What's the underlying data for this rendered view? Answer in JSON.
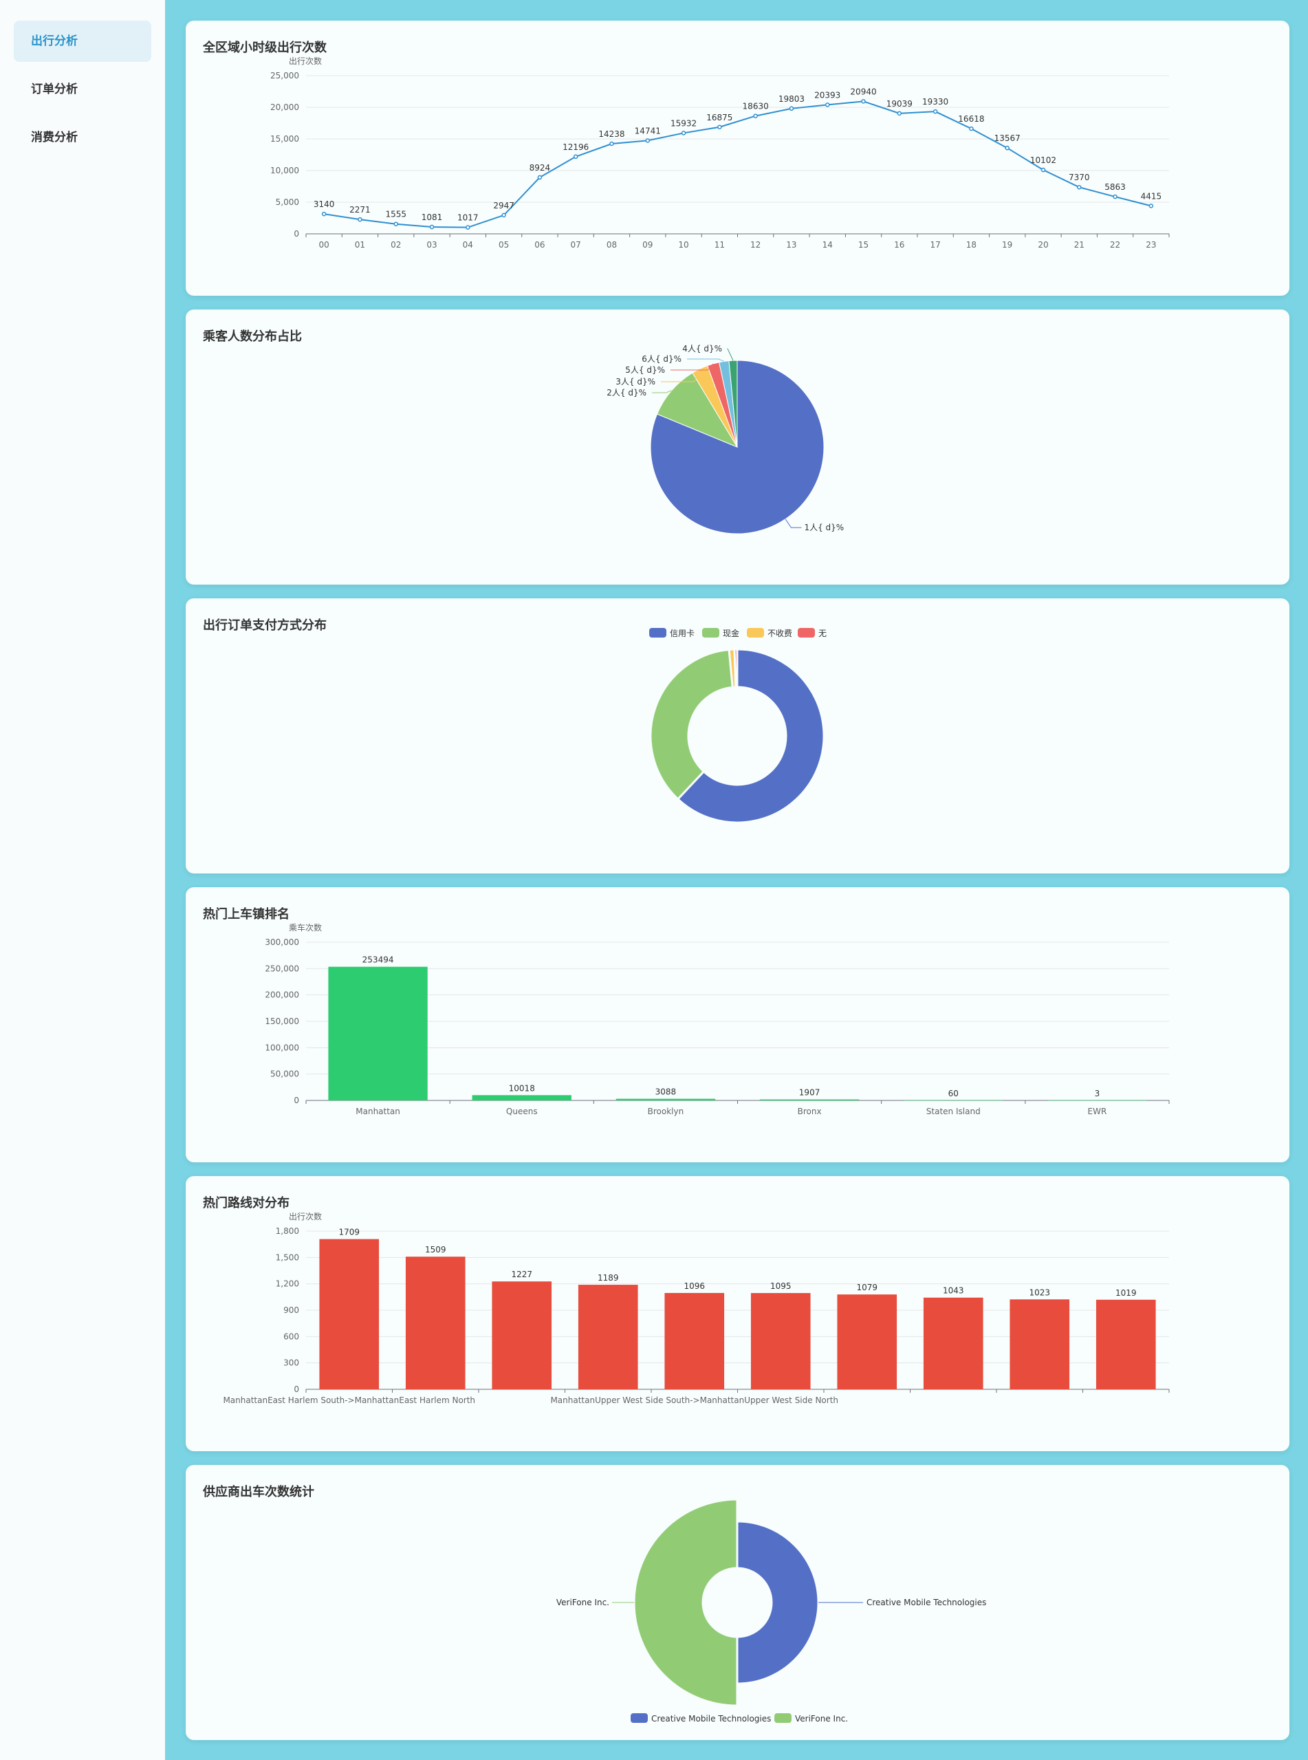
{
  "sidebar": {
    "items": [
      {
        "label": "出行分析",
        "active": true
      },
      {
        "label": "订单分析",
        "active": false
      },
      {
        "label": "消费分析",
        "active": false
      }
    ]
  },
  "colors": {
    "line": "#2e8fd0",
    "blue": "#5470c6",
    "green": "#91cc75",
    "yellow": "#fac858",
    "red": "#ee6666",
    "cyan": "#73c0de",
    "teal": "#3ba272",
    "bar_green": "#2ecc71",
    "bar_red": "#e74c3c"
  },
  "cards": [
    {
      "title": "全区域小时级出行次数"
    },
    {
      "title": "乘客人数分布占比"
    },
    {
      "title": "出行订单支付方式分布"
    },
    {
      "title": "热门上车镇排名"
    },
    {
      "title": "热门路线对分布"
    },
    {
      "title": "供应商出车次数统计"
    }
  ],
  "chart_data": [
    {
      "type": "line",
      "title": "全区域小时级出行次数",
      "ylabel": "出行次数",
      "categories": [
        "00",
        "01",
        "02",
        "03",
        "04",
        "05",
        "06",
        "07",
        "08",
        "09",
        "10",
        "11",
        "12",
        "13",
        "14",
        "15",
        "16",
        "17",
        "18",
        "19",
        "20",
        "21",
        "22",
        "23"
      ],
      "values": [
        3140,
        2271,
        1555,
        1081,
        1017,
        2947,
        8924,
        12196,
        14238,
        14741,
        15932,
        16875,
        18630,
        19803,
        20393,
        20940,
        19039,
        19330,
        16618,
        13567,
        10102,
        7370,
        5863,
        4415
      ],
      "ylim": [
        0,
        25000
      ],
      "yticks": [
        "0",
        "5,000",
        "10,000",
        "15,000",
        "20,000",
        "25,000"
      ]
    },
    {
      "type": "pie",
      "title": "乘客人数分布占比",
      "labels": [
        "1人{ d}%",
        "2人{ d}%",
        "3人{ d}%",
        "5人{ d}%",
        "6人{ d}%",
        "4人{ d}%"
      ],
      "values": [
        80,
        10,
        3,
        2.2,
        1.8,
        1.5
      ]
    },
    {
      "type": "pie",
      "title": "出行订单支付方式分布",
      "legend": [
        "信用卡",
        "现金",
        "不收费",
        "无"
      ],
      "values": [
        62,
        36.5,
        1.0,
        0.5
      ]
    },
    {
      "type": "bar",
      "title": "热门上车镇排名",
      "ylabel": "乘车次数",
      "categories": [
        "Manhattan",
        "Queens",
        "Brooklyn",
        "Bronx",
        "Staten Island",
        "EWR"
      ],
      "values": [
        253494,
        10018,
        3088,
        1907,
        60,
        3
      ],
      "ylim": [
        0,
        300000
      ],
      "yticks": [
        "0",
        "50,000",
        "100,000",
        "150,000",
        "200,000",
        "250,000",
        "300,000"
      ]
    },
    {
      "type": "bar",
      "title": "热门路线对分布",
      "ylabel": "出行次数",
      "categories": [
        "ManhattanEast Harlem South->ManhattanEast Harlem North",
        "",
        "",
        "",
        "ManhattanUpper West Side South->ManhattanUpper West Side North",
        "",
        "",
        "",
        "",
        ""
      ],
      "values": [
        1709,
        1509,
        1227,
        1189,
        1096,
        1095,
        1079,
        1043,
        1023,
        1019
      ],
      "ylim": [
        0,
        1800
      ],
      "yticks": [
        "0",
        "300",
        "600",
        "900",
        "1,200",
        "1,500",
        "1,800"
      ]
    },
    {
      "type": "pie",
      "title": "供应商出车次数统计",
      "labels": [
        "Creative Mobile Technologies",
        "VeriFone Inc."
      ],
      "legend": [
        "Creative Mobile Technologies",
        "VeriFone Inc."
      ],
      "values": [
        50,
        50
      ]
    }
  ]
}
